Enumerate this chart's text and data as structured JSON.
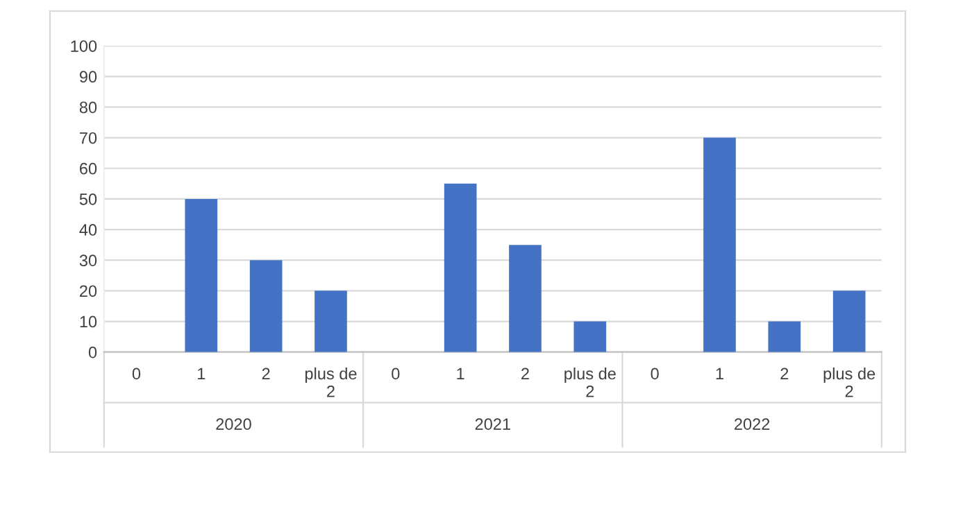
{
  "chart_data": {
    "type": "bar",
    "categories": [
      "0",
      "1",
      "2",
      "plus de 2",
      "0",
      "1",
      "2",
      "plus de 2",
      "0",
      "1",
      "2",
      "plus de 2"
    ],
    "values": [
      0,
      50,
      30,
      20,
      0,
      55,
      35,
      10,
      0,
      70,
      10,
      20
    ],
    "color": "#4472c4",
    "ylim": [
      0,
      100
    ],
    "yticks": [
      0,
      10,
      20,
      30,
      40,
      50,
      60,
      70,
      80,
      90,
      100
    ],
    "grid": "y",
    "annotations": [
      "2020",
      "2021",
      "2022"
    ]
  }
}
